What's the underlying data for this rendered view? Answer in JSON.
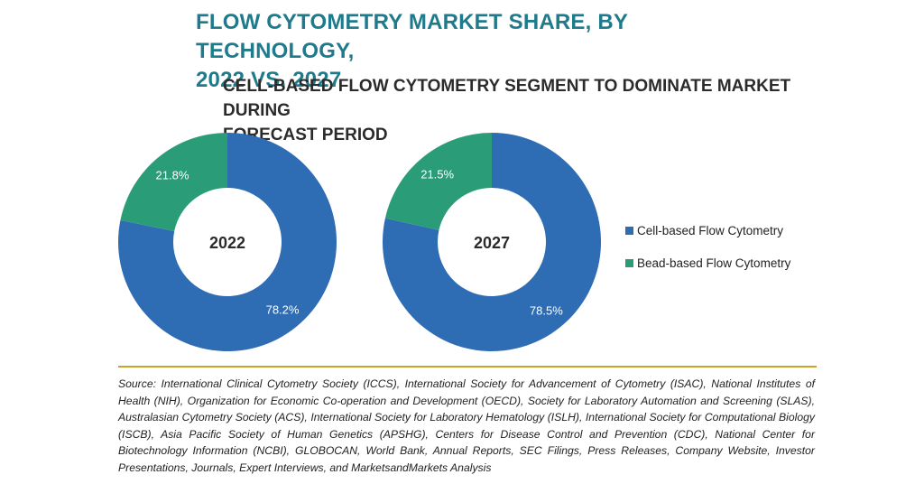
{
  "title_line1": "FLOW CYTOMETRY MARKET SHARE, BY TECHNOLOGY,",
  "title_line2": "2022 VS. 2027",
  "subtitle_line1": "CELL-BASED FLOW CYTOMETRY SEGMENT TO DOMINATE MARKET DURING",
  "subtitle_line2": "FORECAST PERIOD",
  "legend": [
    {
      "label": "Cell-based Flow Cytometry",
      "color": "#2e6db4"
    },
    {
      "label": "Bead-based Flow Cytometry",
      "color": "#2a9d78"
    }
  ],
  "chart_data": [
    {
      "type": "pie",
      "center_label": "2022",
      "categories": [
        "Cell-based Flow Cytometry",
        "Bead-based Flow Cytometry"
      ],
      "values": [
        78.2,
        21.8
      ],
      "labels": [
        "78.2%",
        "21.8%"
      ],
      "colors": [
        "#2e6db4",
        "#2a9d78"
      ]
    },
    {
      "type": "pie",
      "center_label": "2027",
      "categories": [
        "Cell-based Flow Cytometry",
        "Bead-based Flow Cytometry"
      ],
      "values": [
        78.5,
        21.5
      ],
      "labels": [
        "78.5%",
        "21.5%"
      ],
      "colors": [
        "#2e6db4",
        "#2a9d78"
      ]
    }
  ],
  "source": "Source: International Clinical Cytometry Society (ICCS), International Society for Advancement of Cytometry (ISAC), National Institutes of Health (NIH), Organization for Economic Co-operation and Development (OECD), Society for Laboratory Automation and Screening (SLAS), Australasian Cytometry Society (ACS), International Society for Laboratory Hematology (ISLH), International Society for Computational Biology (ISCB), Asia Pacific Society of Human Genetics (APSHG), Centers for Disease Control and Prevention (CDC), National Center for Biotechnology Information (NCBI), GLOBOCAN, World Bank, Annual Reports, SEC Filings, Press Releases, Company Website, Investor Presentations, Journals, Expert Interviews, and MarketsandMarkets Analysis"
}
